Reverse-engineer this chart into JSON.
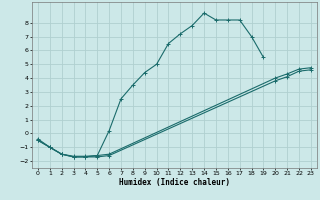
{
  "title": "",
  "xlabel": "Humidex (Indice chaleur)",
  "bg_color": "#cce8e8",
  "grid_color": "#b0d0d0",
  "line_color": "#1a6b6b",
  "curve1_x": [
    0,
    1,
    2,
    3,
    4,
    5,
    6,
    7,
    8,
    9,
    10,
    11,
    12,
    13,
    14,
    15,
    16,
    17,
    18,
    19
  ],
  "curve1_y": [
    -0.5,
    -1.0,
    -1.5,
    -1.7,
    -1.7,
    -1.6,
    0.2,
    2.5,
    3.5,
    4.4,
    5.0,
    6.5,
    7.2,
    7.8,
    8.7,
    8.2,
    8.2,
    8.2,
    7.0,
    5.5
  ],
  "line2_x": [
    0,
    1,
    2,
    3,
    4,
    5,
    6,
    20,
    21,
    22,
    23
  ],
  "line2_y": [
    -0.5,
    -1.0,
    -1.5,
    -1.7,
    -1.7,
    -1.7,
    -1.6,
    3.8,
    4.1,
    4.5,
    4.6
  ],
  "line3_x": [
    0,
    1,
    2,
    3,
    4,
    5,
    6,
    20,
    21,
    22,
    23
  ],
  "line3_y": [
    -0.4,
    -1.0,
    -1.5,
    -1.65,
    -1.65,
    -1.6,
    -1.5,
    4.0,
    4.3,
    4.65,
    4.75
  ],
  "xlim": [
    -0.5,
    23.5
  ],
  "ylim": [
    -2.5,
    9.5
  ],
  "yticks": [
    -2,
    -1,
    0,
    1,
    2,
    3,
    4,
    5,
    6,
    7,
    8
  ],
  "xticks": [
    0,
    1,
    2,
    3,
    4,
    5,
    6,
    7,
    8,
    9,
    10,
    11,
    12,
    13,
    14,
    15,
    16,
    17,
    18,
    19,
    20,
    21,
    22,
    23
  ]
}
